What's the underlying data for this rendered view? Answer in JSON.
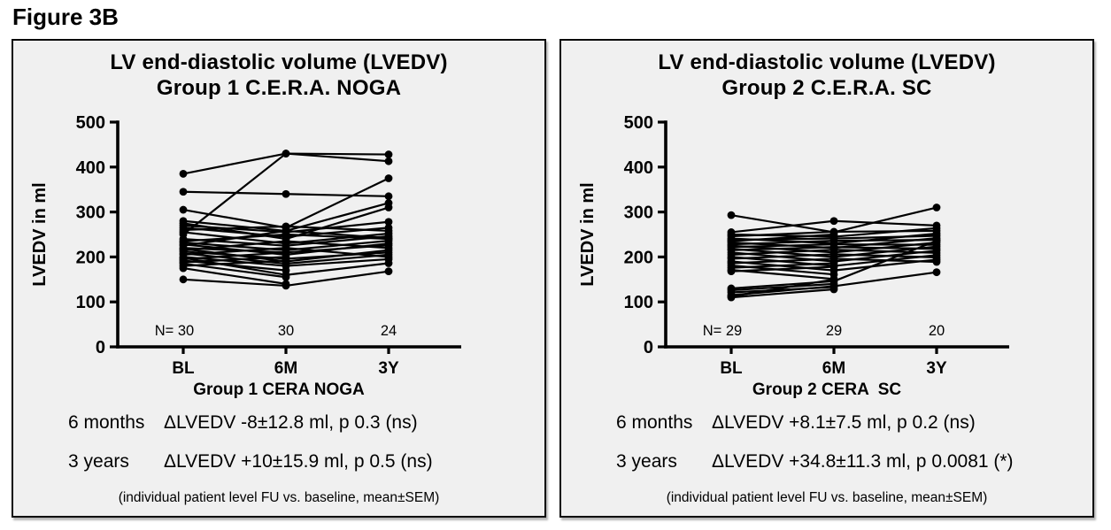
{
  "figure_label": "Figure 3B",
  "colors": {
    "page_bg": "#ffffff",
    "panel_bg": "#f0f0f0",
    "panel_border": "#0a0a0a",
    "data_color": "#000000"
  },
  "panels": [
    {
      "title_line1": "LV end-diastolic volume (LVEDV)",
      "title_line2": "Group 1 C.E.R.A. NOGA",
      "ylabel": "LVEDV in ml",
      "xlabel": "Group 1 CERA NOGA",
      "x_categories": [
        "BL",
        "6M",
        "3Y"
      ],
      "n_labels": [
        "N= 30",
        "30",
        "24"
      ],
      "stats": [
        {
          "period": "6 months",
          "result": "ΔLVEDV -8±12.8 ml, p 0.3 (ns)"
        },
        {
          "period": "3 years",
          "result": "ΔLVEDV +10±15.9 ml, p 0.5 (ns)"
        }
      ],
      "footnote": "(individual patient level FU vs. baseline, mean±SEM)"
    },
    {
      "title_line1": "LV end-diastolic volume (LVEDV)",
      "title_line2": "Group 2 C.E.R.A. SC",
      "ylabel": "LVEDV in ml",
      "xlabel": "Group 2 CERA  SC",
      "x_categories": [
        "BL",
        "6M",
        "3Y"
      ],
      "n_labels": [
        "N= 29",
        "29",
        "20"
      ],
      "stats": [
        {
          "period": "6 months",
          "result": "ΔLVEDV +8.1±7.5 ml, p 0.2 (ns)"
        },
        {
          "period": "3 years",
          "result": "ΔLVEDV +34.8±11.3 ml, p 0.0081 (*)"
        }
      ],
      "footnote": "(individual patient level FU vs. baseline, mean±SEM)"
    }
  ],
  "chart_data": [
    {
      "type": "line",
      "subtype": "paired-individual-patient-lines",
      "title": "LV end-diastolic volume (LVEDV) Group 1 C.E.R.A. NOGA",
      "x_categories": [
        "BL",
        "6M",
        "3Y"
      ],
      "xlabel": "Group 1 CERA NOGA",
      "ylabel": "LVEDV in ml",
      "ylim": [
        0,
        500
      ],
      "yticks": [
        0,
        100,
        200,
        300,
        400,
        500
      ],
      "n_labels": [
        "N= 30",
        "30",
        "24"
      ],
      "n_per_timepoint": [
        30,
        30,
        24
      ],
      "legend": false,
      "grid": false,
      "marker": "circle",
      "line_color": "#000000",
      "series": [
        [
          385,
          430,
          428
        ],
        [
          250,
          430,
          413
        ],
        [
          345,
          340,
          335
        ],
        [
          305,
          265,
          375
        ],
        [
          280,
          258,
          320
        ],
        [
          275,
          240,
          310
        ],
        [
          270,
          255,
          278
        ],
        [
          265,
          245,
          265
        ],
        [
          260,
          268,
          258
        ],
        [
          255,
          230,
          252
        ],
        [
          240,
          225,
          246
        ],
        [
          235,
          250,
          240
        ],
        [
          232,
          215,
          236
        ],
        [
          228,
          205,
          230
        ],
        [
          225,
          258,
          242
        ],
        [
          220,
          210,
          226
        ],
        [
          218,
          190,
          215
        ],
        [
          215,
          235,
          220
        ],
        [
          212,
          196,
          210
        ],
        [
          208,
          185,
          205
        ],
        [
          205,
          220,
          200
        ],
        [
          200,
          180,
          195
        ],
        [
          198,
          160,
          186
        ],
        [
          195,
          210,
          null
        ],
        [
          192,
          170,
          null
        ],
        [
          188,
          200,
          null
        ],
        [
          185,
          155,
          null
        ],
        [
          180,
          192,
          null
        ],
        [
          175,
          140,
          null
        ],
        [
          150,
          136,
          168
        ]
      ]
    },
    {
      "type": "line",
      "subtype": "paired-individual-patient-lines",
      "title": "LV end-diastolic volume (LVEDV) Group 2 C.E.R.A. SC",
      "x_categories": [
        "BL",
        "6M",
        "3Y"
      ],
      "xlabel": "Group 2 CERA  SC",
      "ylabel": "LVEDV in ml",
      "ylim": [
        0,
        500
      ],
      "yticks": [
        0,
        100,
        200,
        300,
        400,
        500
      ],
      "n_labels": [
        "N= 29",
        "29",
        "20"
      ],
      "n_per_timepoint": [
        29,
        29,
        20
      ],
      "legend": false,
      "grid": false,
      "marker": "circle",
      "line_color": "#000000",
      "series": [
        [
          293,
          255,
          310
        ],
        [
          255,
          280,
          270
        ],
        [
          250,
          245,
          264
        ],
        [
          246,
          256,
          258
        ],
        [
          241,
          230,
          252
        ],
        [
          238,
          241,
          247
        ],
        [
          232,
          220,
          242
        ],
        [
          228,
          236,
          238
        ],
        [
          225,
          210,
          232
        ],
        [
          222,
          228,
          227
        ],
        [
          218,
          200,
          223
        ],
        [
          215,
          222,
          218
        ],
        [
          210,
          190,
          214
        ],
        [
          205,
          216,
          209
        ],
        [
          200,
          180,
          204
        ],
        [
          196,
          206,
          199
        ],
        [
          190,
          170,
          194
        ],
        [
          186,
          196,
          189
        ],
        [
          130,
          146,
          236
        ],
        [
          115,
          135,
          166
        ],
        [
          181,
          161,
          null
        ],
        [
          176,
          186,
          null
        ],
        [
          171,
          151,
          null
        ],
        [
          168,
          178,
          null
        ],
        [
          126,
          140,
          null
        ],
        [
          121,
          133,
          null
        ],
        [
          112,
          150,
          null
        ],
        [
          110,
          128,
          null
        ],
        [
          235,
          250,
          null
        ]
      ]
    }
  ]
}
